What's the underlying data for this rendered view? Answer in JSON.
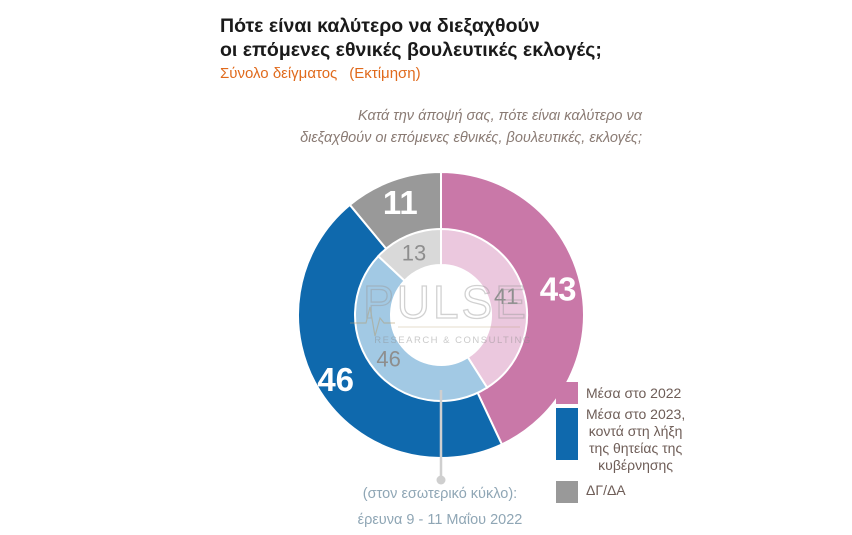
{
  "title_line1": "Πότε είναι καλύτερο να διεξαχθούν",
  "title_line2": "οι επόμενες εθνικές βουλευτικές εκλογές;",
  "subtitle_sample": "Σύνολο δείγματος",
  "subtitle_estimate": "(Εκτίμηση)",
  "question_line1": "Κατά την άποψή σας, πότε είναι καλύτερο να",
  "question_line2": "διεξαχθούν οι επόμενες εθνικές, βουλευτικές, εκλογές;",
  "watermark": {
    "brand": "PULSE",
    "tagline": "RESEARCH & CONSULTING"
  },
  "legend": [
    {
      "lines": [
        "Μέσα στο 2022"
      ],
      "color": "#c978a8"
    },
    {
      "lines": [
        "Μέσα στο 2023,",
        "κοντά στη λήξη",
        "της θητείας της",
        "κυβέρνησης"
      ],
      "color": "#0f69ad"
    },
    {
      "lines": [
        "ΔΓ/ΔΑ"
      ],
      "color": "#999999"
    }
  ],
  "note_line1": "(στον εσωτερικό κύκλο):",
  "note_line2": "έρευνα 9 - 11 Μαΐου 2022",
  "chart_data": {
    "type": "donut",
    "categories": [
      "Μέσα στο 2022",
      "Μέσα στο 2023, κοντά στη λήξη της θητείας της κυβέρνησης",
      "ΔΓ/ΔΑ"
    ],
    "series": [
      {
        "ring": "outer",
        "values": [
          43,
          46,
          11
        ],
        "colors": [
          "#c978a8",
          "#0f69ad",
          "#999999"
        ]
      },
      {
        "ring": "inner",
        "values": [
          41,
          46,
          13
        ],
        "colors": [
          "#ebc8de",
          "#a2c9e4",
          "#d9d9d9"
        ]
      }
    ]
  }
}
